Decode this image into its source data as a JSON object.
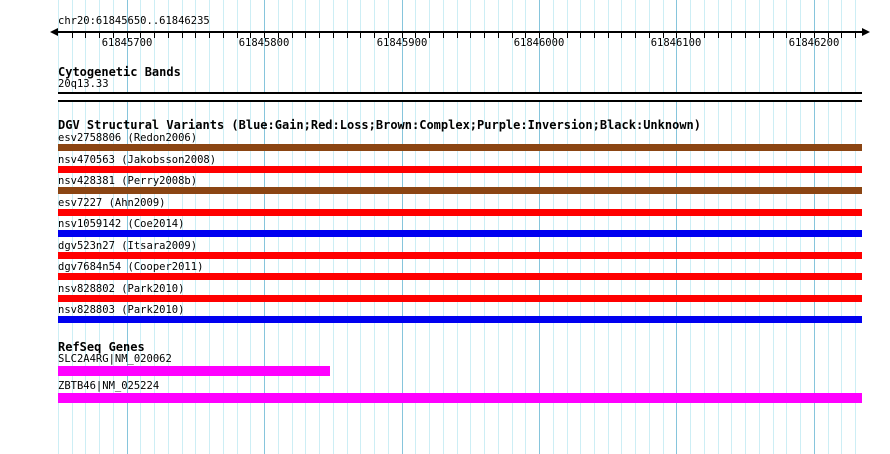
{
  "region_title": "chr20:61845650..61846235",
  "cytogenetic": {
    "header": "Cytogenetic Bands",
    "band_label": "20q13.33"
  },
  "dgv_header": "DGV Structural Variants (Blue:Gain;Red:Loss;Brown:Complex;Purple:Inversion;Black:Unknown)",
  "refseq_header": "RefSeq Genes",
  "chart_data": {
    "type": "table",
    "title": "DGV genome browser tracks for chr20:61845650..61846235",
    "region": {
      "chrom": "chr20",
      "start": 61845650,
      "end": 61846235
    },
    "ruler": {
      "tick_labels": [
        61845700,
        61845800,
        61845900,
        61846000,
        61846100,
        61846200
      ],
      "minor_tick_bp": 10,
      "major_tick_bp": 100
    },
    "legend": {
      "Blue": "Gain",
      "Red": "Loss",
      "Brown": "Complex",
      "Purple": "Inversion",
      "Black": "Unknown"
    },
    "cytoband": {
      "label": "20q13.33"
    },
    "variants": [
      {
        "label": "esv2758806 (Redon2006)",
        "id": "esv2758806",
        "study": "Redon2006",
        "variant_type": "complex",
        "color": "#8b4513"
      },
      {
        "label": "nsv470563 (Jakobsson2008)",
        "id": "nsv470563",
        "study": "Jakobsson2008",
        "variant_type": "loss",
        "color": "#ff0000"
      },
      {
        "label": "nsv428381 (Perry2008b)",
        "id": "nsv428381",
        "study": "Perry2008b",
        "variant_type": "complex",
        "color": "#8b4513"
      },
      {
        "label": "esv7227 (Ahn2009)",
        "id": "esv7227",
        "study": "Ahn2009",
        "variant_type": "loss",
        "color": "#ff0000"
      },
      {
        "label": "nsv1059142 (Coe2014)",
        "id": "nsv1059142",
        "study": "Coe2014",
        "variant_type": "gain",
        "color": "#0000f0"
      },
      {
        "label": "dgv523n27 (Itsara2009)",
        "id": "dgv523n27",
        "study": "Itsara2009",
        "variant_type": "loss",
        "color": "#ff0000"
      },
      {
        "label": "dgv7684n54 (Cooper2011)",
        "id": "dgv7684n54",
        "study": "Cooper2011",
        "variant_type": "loss",
        "color": "#ff0000"
      },
      {
        "label": "nsv828802 (Park2010)",
        "id": "nsv828802",
        "study": "Park2010",
        "variant_type": "loss",
        "color": "#ff0000"
      },
      {
        "label": "nsv828803 (Park2010)",
        "id": "nsv828803",
        "study": "Park2010",
        "variant_type": "gain",
        "color": "#0000f0"
      }
    ],
    "genes": [
      {
        "label": "SLC2A4RG|NM_020062",
        "gene": "SLC2A4RG",
        "transcript": "NM_020062",
        "color": "#ff00ff",
        "bar_start": 61845650,
        "bar_end": 61845848
      },
      {
        "label": "ZBTB46|NM_025224",
        "gene": "ZBTB46",
        "transcript": "NM_025224",
        "color": "#ff00ff",
        "bar_start": 61845650,
        "bar_end": 61846235
      }
    ],
    "grid_colors": {
      "minor": "#cdeef5",
      "major": "#86c5dc"
    },
    "layout_hint": "vertical gridlines every 10 bp (light) and 100 bp (dark), tracks full-width horizontal bars"
  }
}
